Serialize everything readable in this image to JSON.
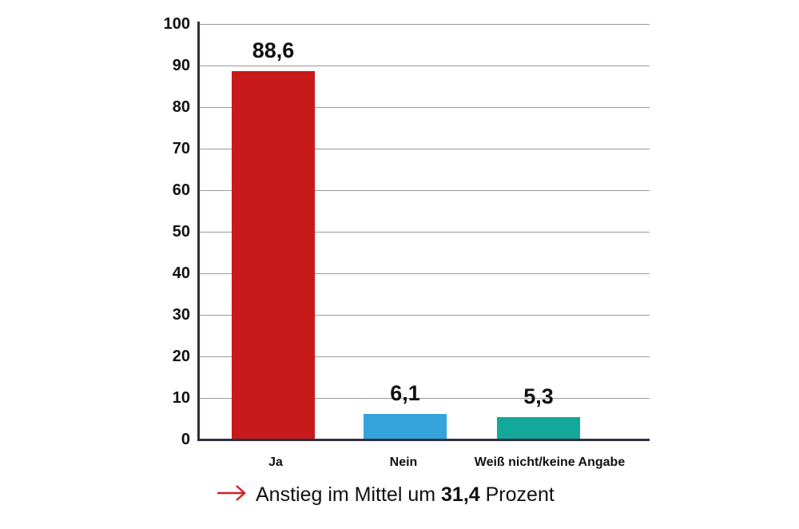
{
  "chart_data": {
    "type": "bar",
    "title": "",
    "xlabel": "",
    "ylabel": "",
    "ylim": [
      0,
      100
    ],
    "yticks": [
      "0",
      "10",
      "20",
      "30",
      "40",
      "50",
      "60",
      "70",
      "80",
      "90",
      "100"
    ],
    "grid": true,
    "categories": [
      "Ja",
      "Nein",
      "Weiß nicht/keine Angabe"
    ],
    "values": [
      88.6,
      6.1,
      5.3
    ],
    "value_labels": [
      "88,6",
      "6,1",
      "5,3"
    ],
    "colors": [
      "#c8191b",
      "#35a3dc",
      "#13a89a"
    ],
    "annotation": {
      "arrow_color": "#d2232a",
      "prefix": "Anstieg im Mittel um ",
      "value": "31,4",
      "suffix": " Prozent"
    }
  }
}
